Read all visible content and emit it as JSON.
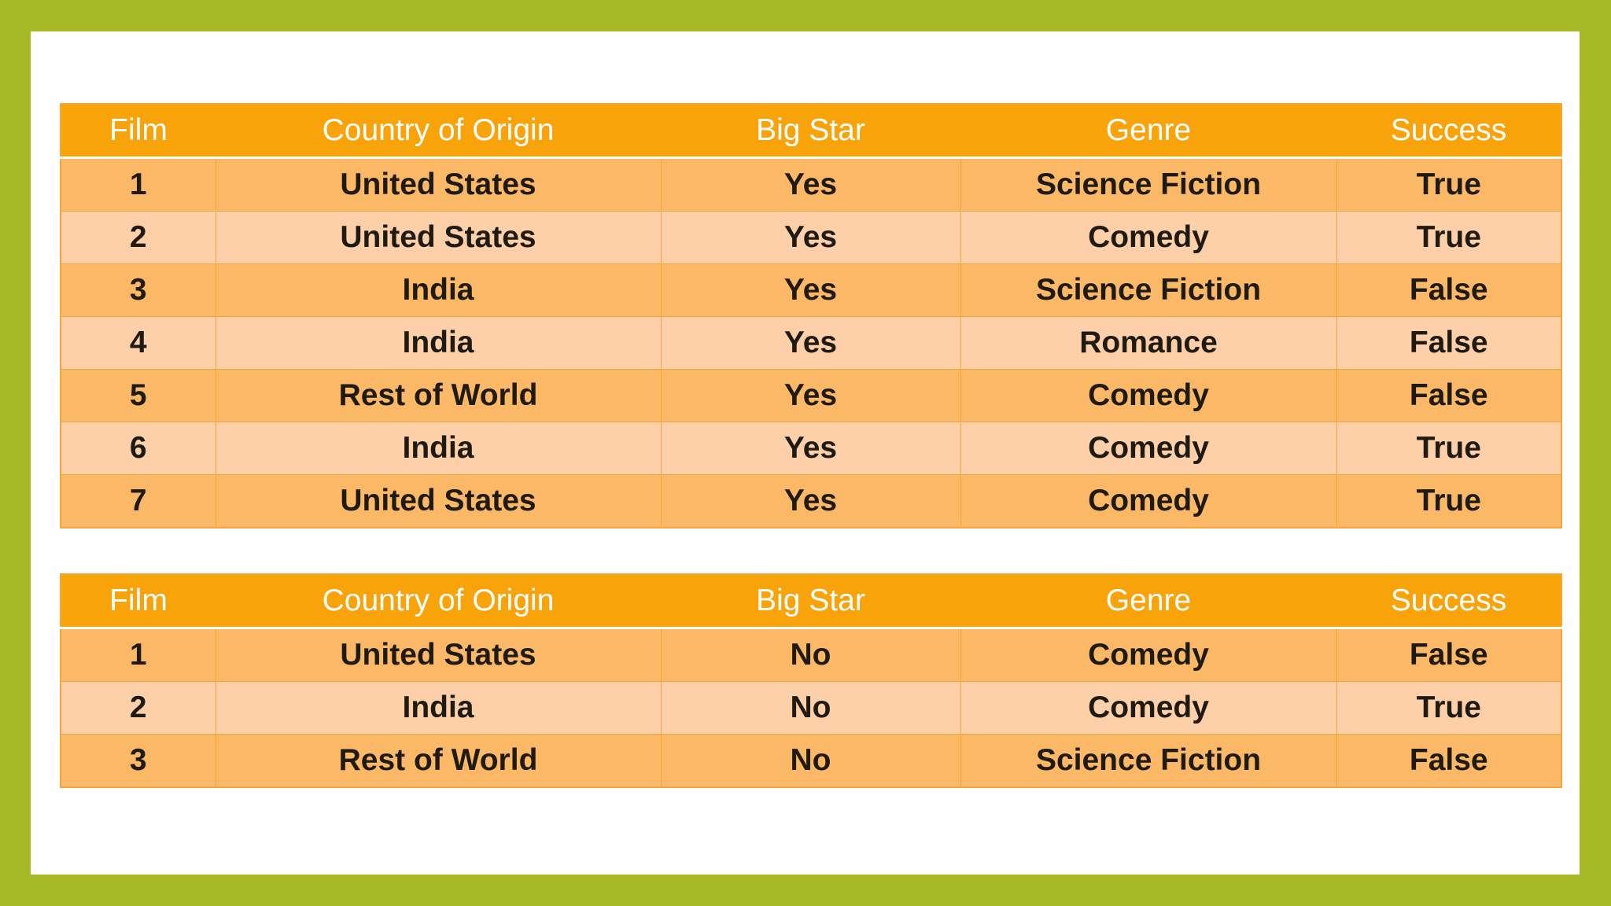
{
  "tables": [
    {
      "headers": [
        "Film",
        "Country of Origin",
        "Big Star",
        "Genre",
        "Success"
      ],
      "rows": [
        [
          "1",
          "United States",
          "Yes",
          "Science Fiction",
          "True"
        ],
        [
          "2",
          "United States",
          "Yes",
          "Comedy",
          "True"
        ],
        [
          "3",
          "India",
          "Yes",
          "Science Fiction",
          "False"
        ],
        [
          "4",
          "India",
          "Yes",
          "Romance",
          "False"
        ],
        [
          "5",
          "Rest of World",
          "Yes",
          "Comedy",
          "False"
        ],
        [
          "6",
          "India",
          "Yes",
          "Comedy",
          "True"
        ],
        [
          "7",
          "United States",
          "Yes",
          "Comedy",
          "True"
        ]
      ]
    },
    {
      "headers": [
        "Film",
        "Country of Origin",
        "Big Star",
        "Genre",
        "Success"
      ],
      "rows": [
        [
          "1",
          "United States",
          "No",
          "Comedy",
          "False"
        ],
        [
          "2",
          "India",
          "No",
          "Comedy",
          "True"
        ],
        [
          "3",
          "Rest of World",
          "No",
          "Science Fiction",
          "False"
        ]
      ]
    }
  ],
  "colors": {
    "frame": "#a5b926",
    "header": "#f9a30b",
    "row_odd": "#fbb866",
    "row_even": "#fdd0a9"
  }
}
